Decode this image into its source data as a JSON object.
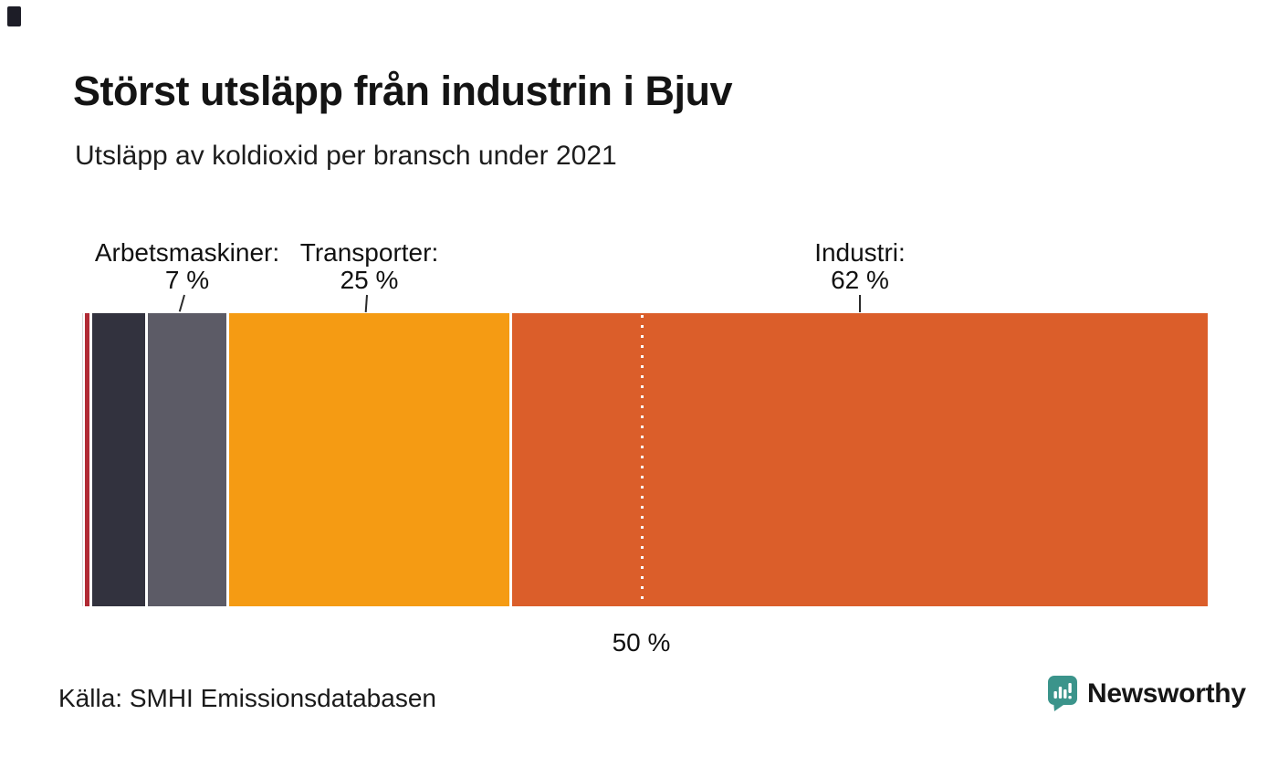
{
  "header": {
    "title": "Störst utsläpp från industrin i Bjuv",
    "subtitle": "Utsläpp av koldioxid per bransch under 2021"
  },
  "chart_data": {
    "type": "bar",
    "variant": "single-horizontal-stacked-bar",
    "title": "Störst utsläpp från industrin i Bjuv",
    "subtitle": "Utsläpp av koldioxid per bransch under 2021",
    "xlim": [
      0,
      100
    ],
    "gridlines": false,
    "segments": [
      {
        "name": "",
        "pct": 0.4,
        "color": "#b02a34",
        "label_visible": false,
        "label_line1": "",
        "label_line2": ""
      },
      {
        "name": "",
        "pct": 4.7,
        "color": "#32323e",
        "label_visible": false,
        "label_line1": "",
        "label_line2": ""
      },
      {
        "name": "Arbetsmaskiner",
        "pct": 7,
        "color": "#5c5b66",
        "label_visible": true,
        "label_line1": "Arbetsmaskiner:",
        "label_line2": "7 %"
      },
      {
        "name": "Transporter",
        "pct": 25,
        "color": "#f59b13",
        "label_visible": true,
        "label_line1": "Transporter:",
        "label_line2": "25 %"
      },
      {
        "name": "Industri",
        "pct": 62,
        "color": "#db5e2a",
        "label_visible": true,
        "label_line1": "Industri:",
        "label_line2": "62 %"
      }
    ],
    "reference_line": {
      "pct": 50,
      "label": "50 %",
      "style": "dotted-white"
    }
  },
  "footer": {
    "source": "Källa: SMHI Emissionsdatabasen",
    "brand_name": "Newsworthy",
    "brand_color": "#3b948b"
  }
}
